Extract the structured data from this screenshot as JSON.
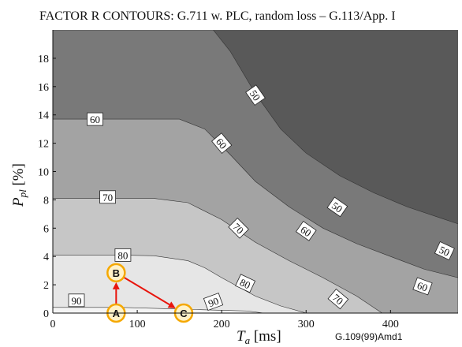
{
  "chart_data": {
    "type": "contour",
    "title": "FACTOR R CONTOURS: G.711 w. PLC, random loss – G.113/App. I",
    "xlabel": "T",
    "xlabel_sub": "a",
    "xlabel_unit": " [ms]",
    "ylabel": "P",
    "ylabel_sub": "pl",
    "ylabel_unit": " [%]",
    "xlim": [
      0,
      480
    ],
    "ylim": [
      0,
      20
    ],
    "x_ticks": [
      0,
      100,
      200,
      300,
      400
    ],
    "y_ticks": [
      0,
      2,
      4,
      6,
      8,
      10,
      12,
      14,
      16,
      18
    ],
    "levels": [
      {
        "level": 90,
        "color": "#f4f4f4",
        "poly": [
          [
            0,
            0
          ],
          [
            0,
            0.4
          ],
          [
            80,
            0.4
          ],
          [
            110,
            0.35
          ],
          [
            140,
            0.3
          ],
          [
            170,
            0.25
          ],
          [
            200,
            0.2
          ],
          [
            230,
            0.15
          ],
          [
            250,
            0
          ]
        ]
      },
      {
        "level": 80,
        "color": "#e6e6e6",
        "poly": [
          [
            0,
            0
          ],
          [
            0,
            4.1
          ],
          [
            80,
            4.1
          ],
          [
            120,
            4.05
          ],
          [
            160,
            3.7
          ],
          [
            180,
            3.2
          ],
          [
            200,
            2.5
          ],
          [
            240,
            1.2
          ],
          [
            270,
            0.5
          ],
          [
            300,
            0
          ]
        ]
      },
      {
        "level": 70,
        "color": "#c6c6c6",
        "poly": [
          [
            0,
            0
          ],
          [
            0,
            8.1
          ],
          [
            120,
            8.1
          ],
          [
            160,
            7.8
          ],
          [
            200,
            6.6
          ],
          [
            240,
            5.0
          ],
          [
            280,
            3.7
          ],
          [
            320,
            2.5
          ],
          [
            360,
            1.2
          ],
          [
            390,
            0
          ]
        ]
      },
      {
        "level": 60,
        "color": "#a3a3a3",
        "poly": [
          [
            0,
            0
          ],
          [
            0,
            13.7
          ],
          [
            150,
            13.7
          ],
          [
            180,
            13.0
          ],
          [
            210,
            11.2
          ],
          [
            240,
            9.3
          ],
          [
            280,
            7.5
          ],
          [
            320,
            6.0
          ],
          [
            360,
            4.9
          ],
          [
            400,
            4.0
          ],
          [
            440,
            3.1
          ],
          [
            480,
            2.5
          ],
          [
            480,
            0
          ]
        ]
      },
      {
        "level": 50,
        "color": "#797979",
        "poly": [
          [
            0,
            0
          ],
          [
            0,
            20
          ],
          [
            190,
            20
          ],
          [
            210,
            18.5
          ],
          [
            240,
            15.5
          ],
          [
            270,
            13.0
          ],
          [
            300,
            11.3
          ],
          [
            340,
            9.7
          ],
          [
            380,
            8.5
          ],
          [
            420,
            7.5
          ],
          [
            460,
            6.7
          ],
          [
            480,
            6.3
          ],
          [
            480,
            0
          ]
        ]
      },
      {
        "level": 0,
        "color": "#595959",
        "poly": []
      }
    ],
    "contour_labels": [
      {
        "text": "90",
        "x": 28,
        "y": 0.9,
        "rot": 0
      },
      {
        "text": "80",
        "x": 83,
        "y": 4.1,
        "rot": 0
      },
      {
        "text": "70",
        "x": 65,
        "y": 8.2,
        "rot": 0
      },
      {
        "text": "60",
        "x": 50,
        "y": 13.7,
        "rot": 0
      },
      {
        "text": "90",
        "x": 190,
        "y": 0.8,
        "rot": -20
      },
      {
        "text": "80",
        "x": 228,
        "y": 2.1,
        "rot": 25
      },
      {
        "text": "70",
        "x": 220,
        "y": 6.0,
        "rot": 45
      },
      {
        "text": "60",
        "x": 200,
        "y": 12.0,
        "rot": 50
      },
      {
        "text": "50",
        "x": 240,
        "y": 15.4,
        "rot": 55
      },
      {
        "text": "70",
        "x": 338,
        "y": 1.0,
        "rot": 40
      },
      {
        "text": "60",
        "x": 300,
        "y": 5.8,
        "rot": 35
      },
      {
        "text": "50",
        "x": 337,
        "y": 7.5,
        "rot": 35
      },
      {
        "text": "60",
        "x": 438,
        "y": 1.9,
        "rot": 20
      },
      {
        "text": "50",
        "x": 464,
        "y": 4.4,
        "rot": 25
      }
    ],
    "points": [
      {
        "label": "A",
        "x": 75,
        "y": 0
      },
      {
        "label": "B",
        "x": 75,
        "y": 2.85
      },
      {
        "label": "C",
        "x": 155,
        "y": 0
      }
    ],
    "arrows": [
      {
        "from": "A",
        "to": "B",
        "color": "#e8140c"
      },
      {
        "from": "B",
        "to": "C",
        "color": "#e8140c"
      }
    ],
    "source": "G.109(99)Amd1"
  }
}
